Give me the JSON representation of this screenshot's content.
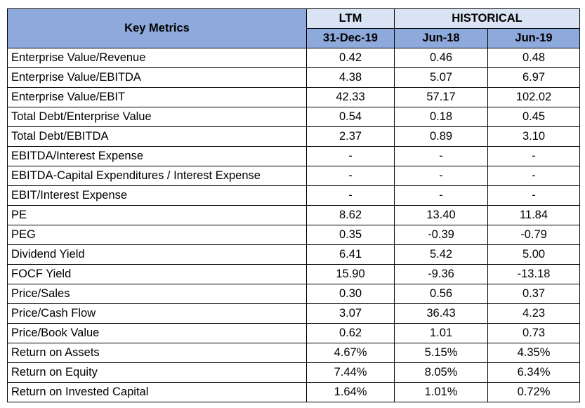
{
  "header": {
    "key_metrics": "Key Metrics",
    "ltm": "LTM",
    "historical": "HISTORICAL",
    "periods": [
      "31-Dec-19",
      "Jun-18",
      "Jun-19"
    ]
  },
  "rows": [
    {
      "label": "Enterprise Value/Revenue",
      "values": [
        "0.42",
        "0.46",
        "0.48"
      ]
    },
    {
      "label": "Enterprise Value/EBITDA",
      "values": [
        "4.38",
        "5.07",
        "6.97"
      ]
    },
    {
      "label": "Enterprise Value/EBIT",
      "values": [
        "42.33",
        "57.17",
        "102.02"
      ]
    },
    {
      "label": "Total Debt/Enterprise Value",
      "values": [
        "0.54",
        "0.18",
        "0.45"
      ]
    },
    {
      "label": "Total Debt/EBITDA",
      "values": [
        "2.37",
        "0.89",
        "3.10"
      ]
    },
    {
      "label": "EBITDA/Interest Expense",
      "values": [
        "-",
        "-",
        "-"
      ]
    },
    {
      "label": "EBITDA-Capital Expenditures / Interest Expense",
      "values": [
        "-",
        "-",
        "-"
      ]
    },
    {
      "label": "EBIT/Interest Expense",
      "values": [
        "-",
        "-",
        "-"
      ]
    },
    {
      "label": "PE",
      "values": [
        "8.62",
        "13.40",
        "11.84"
      ]
    },
    {
      "label": "PEG",
      "values": [
        "0.35",
        "-0.39",
        "-0.79"
      ]
    },
    {
      "label": "Dividend Yield",
      "values": [
        "6.41",
        "5.42",
        "5.00"
      ]
    },
    {
      "label": "FOCF Yield",
      "values": [
        "15.90",
        "-9.36",
        "-13.18"
      ]
    },
    {
      "label": "Price/Sales",
      "values": [
        "0.30",
        "0.56",
        "0.37"
      ]
    },
    {
      "label": "Price/Cash Flow",
      "values": [
        "3.07",
        "36.43",
        "4.23"
      ]
    },
    {
      "label": "Price/Book Value",
      "values": [
        "0.62",
        "1.01",
        "0.73"
      ]
    },
    {
      "label": "Return on Assets",
      "values": [
        "4.67%",
        "5.15%",
        "4.35%"
      ]
    },
    {
      "label": "Return on Equity",
      "values": [
        "7.44%",
        "8.05%",
        "6.34%"
      ]
    },
    {
      "label": "Return on Invested Capital",
      "values": [
        "1.64%",
        "1.01%",
        "0.72%"
      ]
    }
  ],
  "colors": {
    "header_blue": "#8ea9db",
    "header_light": "#dae3f3"
  }
}
